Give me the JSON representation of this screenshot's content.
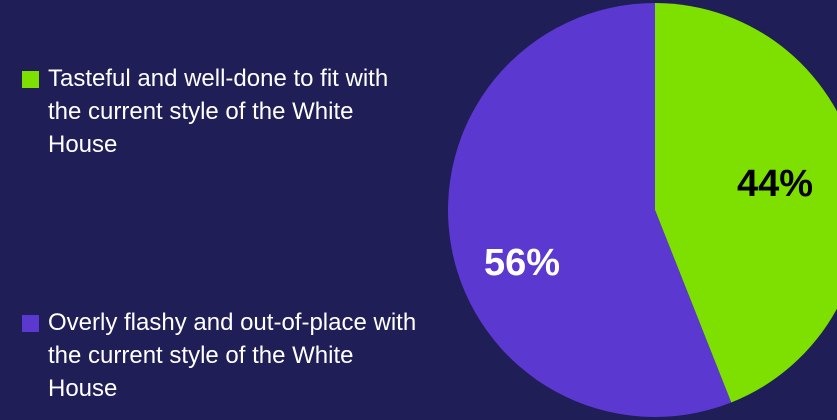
{
  "chart_data": {
    "type": "pie",
    "slices": [
      {
        "label": "Tasteful and well-done to fit with the current style of the White House",
        "value": 44,
        "display": "44%",
        "color": "#7ee000",
        "label_color": "#000000"
      },
      {
        "label": "Overly flashy and out-of-place with the current style of the White House",
        "value": 56,
        "display": "56%",
        "color": "#5b38d0",
        "label_color": "#ffffff"
      }
    ],
    "legend_position": "left"
  }
}
